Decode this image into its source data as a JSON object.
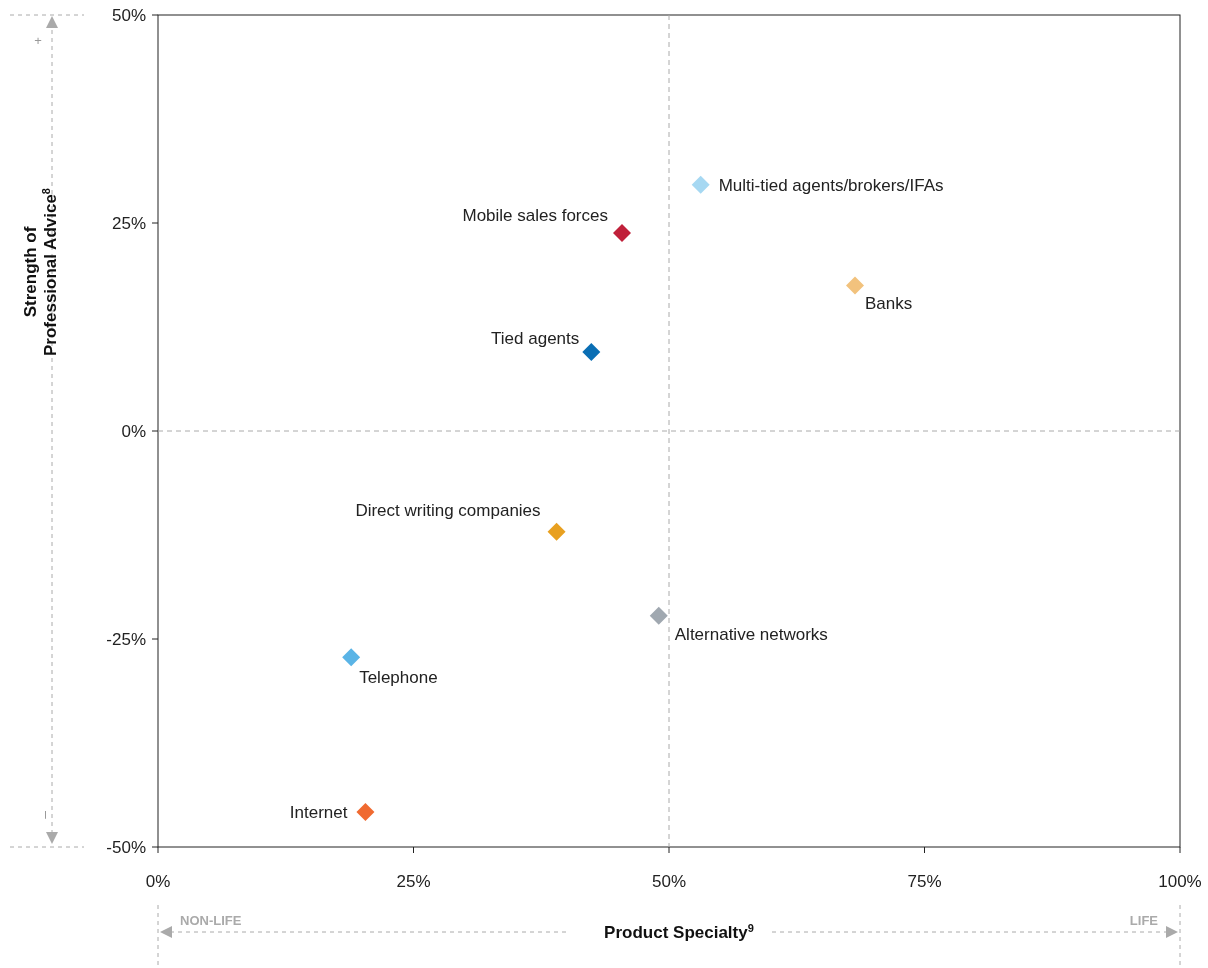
{
  "chart_data": {
    "type": "scatter",
    "xlabel": "Product Specialty$^{9}$",
    "ylabel": "Strength of\nProfessional Advice$^{8}$",
    "xlim": [
      0,
      100
    ],
    "ylim": [
      -50,
      50
    ],
    "xticks": [
      {
        "value": 0,
        "label": "0%"
      },
      {
        "value": 25,
        "label": "25%"
      },
      {
        "value": 50,
        "label": "50%"
      },
      {
        "value": 75,
        "label": "75%"
      },
      {
        "value": 100,
        "label": "100%"
      }
    ],
    "yticks": [
      {
        "value": -50,
        "label": "-50%"
      },
      {
        "value": -25,
        "label": "-25%"
      },
      {
        "value": 0,
        "label": "0%"
      },
      {
        "value": 25,
        "label": "25%"
      },
      {
        "value": 50,
        "label": "50%"
      }
    ],
    "marker": "diamond",
    "grid": false,
    "series": [
      {
        "name": "Multi-tied agents/brokers/IFAs",
        "color": "#a6d8f2",
        "x": [
          53.1
        ],
        "values": [
          29.6
        ]
      },
      {
        "name": "Mobile sales forces",
        "color": "#c0203a",
        "x": [
          45.4
        ],
        "values": [
          23.8
        ]
      },
      {
        "name": "Banks",
        "color": "#f2c27d",
        "x": [
          68.2
        ],
        "values": [
          17.5
        ]
      },
      {
        "name": "Tied agents",
        "color": "#0a6eb4",
        "x": [
          42.4
        ],
        "values": [
          9.5
        ]
      },
      {
        "name": "Direct writing companies",
        "color": "#e8a020",
        "x": [
          39.0
        ],
        "values": [
          -12.1
        ]
      },
      {
        "name": "Alternative networks",
        "color": "#a0a8b0",
        "x": [
          49.0
        ],
        "values": [
          -22.2
        ]
      },
      {
        "name": "Telephone",
        "color": "#5ab4e6",
        "x": [
          18.9
        ],
        "values": [
          -27.2
        ]
      },
      {
        "name": "Internet",
        "color": "#f06a30",
        "x": [
          20.3
        ],
        "values": [
          -45.8
        ]
      }
    ],
    "ref_lines": [
      {
        "axis": "x",
        "value": 50,
        "line_style": "dashed",
        "color": "#aaaaaa"
      },
      {
        "axis": "y",
        "value": 0,
        "line_style": "dashed",
        "color": "#aaaaaa"
      }
    ],
    "annotations": [
      "+",
      "–",
      "NON-LIFE",
      "LIFE"
    ]
  }
}
